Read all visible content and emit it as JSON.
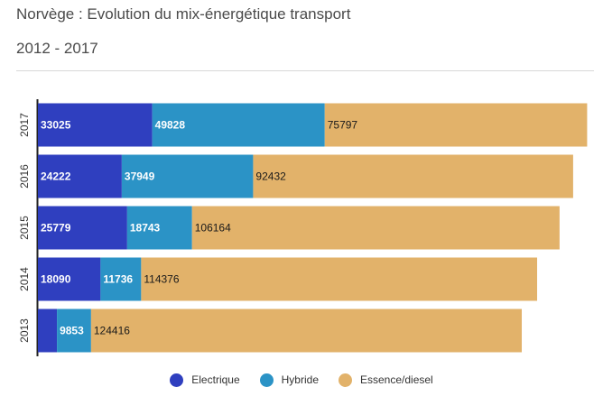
{
  "title": "Norvège : Evolution du mix-énergétique transport",
  "subtitle": "2012 - 2017",
  "colors": {
    "electrique": "#2f3fbf",
    "hybride": "#2b93c6",
    "essence": "#e2b26a",
    "axis": "#222222"
  },
  "chart_data": {
    "type": "bar",
    "orientation": "horizontal",
    "stacked": true,
    "categories": [
      "2017",
      "2016",
      "2015",
      "2014",
      "2013"
    ],
    "series": [
      {
        "name": "Electrique",
        "values": [
          33025,
          24222,
          25779,
          18090,
          5500
        ],
        "labels": [
          "33025",
          "24222",
          "25779",
          "18090",
          ""
        ]
      },
      {
        "name": "Hybride",
        "values": [
          49828,
          37949,
          18743,
          11736,
          9853
        ],
        "labels": [
          "49828",
          "37949",
          "18743",
          "11736",
          "9853"
        ]
      },
      {
        "name": "Essence/diesel",
        "values": [
          75797,
          92432,
          106164,
          114376,
          124416
        ],
        "labels": [
          "75797",
          "92432",
          "106164",
          "114376",
          "124416"
        ]
      }
    ],
    "xlim": [
      0,
      160000
    ]
  }
}
